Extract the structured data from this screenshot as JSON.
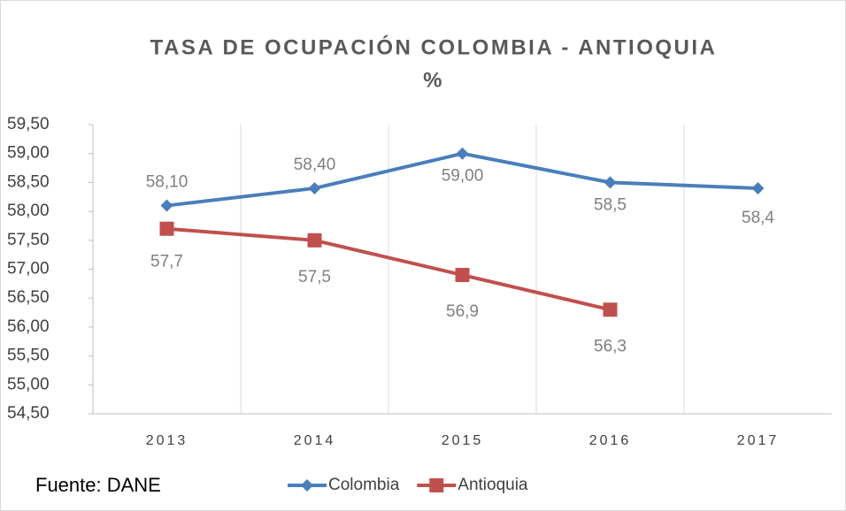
{
  "chart_data": {
    "type": "line",
    "title": "TASA DE OCUPACIÓN  COLOMBIA - ANTIOQUIA",
    "subtitle": "%",
    "annotation": "Fuente: DANE",
    "categories": [
      "2013",
      "2014",
      "2015",
      "2016",
      "2017"
    ],
    "series": [
      {
        "name": "Colombia",
        "color": "#4a7ebb",
        "marker": "diamond",
        "values": [
          58.1,
          58.4,
          59.0,
          58.5,
          58.4
        ],
        "value_labels": [
          "58,10",
          "58,40",
          "59,00",
          "58,5",
          "58,4"
        ]
      },
      {
        "name": "Antioquia",
        "color": "#c0504d",
        "marker": "square",
        "values": [
          57.7,
          57.5,
          56.9,
          56.3,
          null
        ],
        "value_labels": [
          "57,7",
          "57,5",
          "56,9",
          "56,3",
          null
        ]
      }
    ],
    "ylim": [
      54.5,
      59.5
    ],
    "yticks": [
      {
        "value": 54.5,
        "label": "54,50"
      },
      {
        "value": 55,
        "label": "55,00"
      },
      {
        "value": 55.5,
        "label": "55,50"
      },
      {
        "value": 56,
        "label": "56,00"
      },
      {
        "value": 56.5,
        "label": "56,50"
      },
      {
        "value": 57,
        "label": "57,00"
      },
      {
        "value": 57.5,
        "label": "57,50"
      },
      {
        "value": 58,
        "label": "58,00"
      },
      {
        "value": 58.5,
        "label": "58,50"
      },
      {
        "value": 59,
        "label": "59,00"
      },
      {
        "value": 59.5,
        "label": "59,50"
      }
    ],
    "grid": true,
    "legend": "bottom"
  }
}
